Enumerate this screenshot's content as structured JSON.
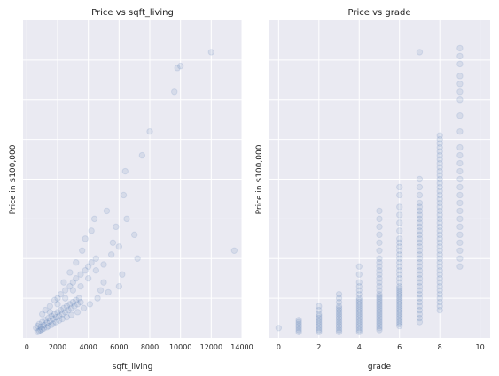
{
  "chart_data": [
    {
      "type": "scatter",
      "title": "Price vs sqft_living",
      "xlabel": "sqft_living",
      "ylabel": "Price in $100,000",
      "xlim": [
        -250,
        14000
      ],
      "xticks": [
        0,
        2000,
        4000,
        6000,
        8000,
        10000,
        12000,
        14000
      ],
      "ylim": [
        0,
        80
      ],
      "y_ticklabels_visible": false,
      "grid": true,
      "marker_alpha": 0.12,
      "points": [
        [
          600,
          2.5
        ],
        [
          700,
          3.0
        ],
        [
          800,
          3.5
        ],
        [
          900,
          2.8
        ],
        [
          1000,
          4.0
        ],
        [
          1100,
          3.2
        ],
        [
          1200,
          4.5
        ],
        [
          1300,
          3.8
        ],
        [
          1400,
          5.0
        ],
        [
          1500,
          4.2
        ],
        [
          1600,
          5.5
        ],
        [
          1700,
          4.8
        ],
        [
          1800,
          6.0
        ],
        [
          1900,
          5.2
        ],
        [
          2000,
          6.5
        ],
        [
          2100,
          5.5
        ],
        [
          2200,
          7.0
        ],
        [
          2300,
          6.0
        ],
        [
          2400,
          7.5
        ],
        [
          2500,
          6.5
        ],
        [
          2600,
          8.0
        ],
        [
          2700,
          7.0
        ],
        [
          2800,
          8.5
        ],
        [
          2900,
          7.5
        ],
        [
          3000,
          9.0
        ],
        [
          3100,
          8.0
        ],
        [
          3200,
          9.5
        ],
        [
          3300,
          8.5
        ],
        [
          3400,
          10.0
        ],
        [
          3500,
          9.0
        ],
        [
          1000,
          6.0
        ],
        [
          1200,
          7.0
        ],
        [
          1500,
          8.0
        ],
        [
          1800,
          9.5
        ],
        [
          2000,
          10.0
        ],
        [
          2200,
          11.0
        ],
        [
          2500,
          12.0
        ],
        [
          2800,
          13.0
        ],
        [
          3000,
          14.0
        ],
        [
          3200,
          15.0
        ],
        [
          3500,
          16.0
        ],
        [
          3800,
          17.0
        ],
        [
          4000,
          18.0
        ],
        [
          4200,
          19.0
        ],
        [
          4500,
          20.0
        ],
        [
          3000,
          12.0
        ],
        [
          2500,
          10.0
        ],
        [
          2000,
          8.5
        ],
        [
          1500,
          6.5
        ],
        [
          3500,
          13.0
        ],
        [
          4000,
          15.0
        ],
        [
          4500,
          17.0
        ],
        [
          5000,
          18.5
        ],
        [
          5500,
          21.0
        ],
        [
          6000,
          23.0
        ],
        [
          3800,
          25.0
        ],
        [
          4200,
          27.0
        ],
        [
          4400,
          30.0
        ],
        [
          5200,
          32.0
        ],
        [
          5800,
          28.0
        ],
        [
          6300,
          36.0
        ],
        [
          6400,
          42.0
        ],
        [
          7500,
          46.0
        ],
        [
          8000,
          52.0
        ],
        [
          9600,
          62.0
        ],
        [
          9800,
          68.0
        ],
        [
          10000,
          68.5
        ],
        [
          12000,
          72.0
        ],
        [
          13500,
          22.0
        ],
        [
          7000,
          26.0
        ],
        [
          6500,
          30.0
        ],
        [
          5000,
          14.0
        ],
        [
          4800,
          12.0
        ],
        [
          6200,
          16.0
        ],
        [
          7200,
          20.0
        ],
        [
          5600,
          24.0
        ],
        [
          3600,
          22.0
        ],
        [
          3200,
          19.0
        ],
        [
          2800,
          16.5
        ],
        [
          2400,
          14.0
        ],
        [
          700,
          1.5
        ],
        [
          800,
          1.8
        ],
        [
          900,
          2.0
        ],
        [
          1000,
          2.2
        ],
        [
          1100,
          2.4
        ],
        [
          1300,
          2.7
        ],
        [
          1400,
          3.0
        ],
        [
          1600,
          3.3
        ],
        [
          1700,
          3.6
        ],
        [
          1900,
          4.0
        ],
        [
          2100,
          4.4
        ],
        [
          2300,
          4.8
        ],
        [
          2600,
          5.2
        ],
        [
          2900,
          5.8
        ],
        [
          3300,
          6.5
        ],
        [
          3700,
          7.5
        ],
        [
          4100,
          8.5
        ],
        [
          4600,
          10.0
        ],
        [
          5300,
          11.5
        ],
        [
          6000,
          13.0
        ]
      ]
    },
    {
      "type": "scatter",
      "title": "Price vs grade",
      "xlabel": "grade",
      "ylabel": "Price in $100,000",
      "xlim": [
        -0.5,
        10.5
      ],
      "xticks": [
        0,
        2,
        4,
        6,
        8,
        10
      ],
      "ylim": [
        0,
        80
      ],
      "y_ticklabels_visible": false,
      "grid": true,
      "marker_alpha": 0.12,
      "columns": [
        {
          "grade": 0,
          "values": [
            2.5
          ]
        },
        {
          "grade": 1,
          "values": [
            1.5,
            2,
            2.5,
            3,
            3.5,
            4,
            4.5
          ]
        },
        {
          "grade": 2,
          "values": [
            1.5,
            2,
            2.5,
            3,
            3.5,
            4,
            4.5,
            5,
            5.5,
            6,
            7,
            8
          ]
        },
        {
          "grade": 3,
          "values": [
            1.5,
            2,
            2.5,
            3,
            3.5,
            4,
            4.5,
            5,
            5.5,
            6,
            6.5,
            7,
            7.5,
            8,
            9,
            10,
            11
          ]
        },
        {
          "grade": 4,
          "values": [
            1.5,
            2,
            2.5,
            3,
            3.5,
            4,
            4.5,
            5,
            5.5,
            6,
            6.5,
            7,
            7.5,
            8,
            8.5,
            9,
            9.5,
            10,
            11,
            12,
            13,
            14,
            16,
            18
          ]
        },
        {
          "grade": 5,
          "values": [
            2,
            2.5,
            3,
            3.5,
            4,
            4.5,
            5,
            5.5,
            6,
            6.5,
            7,
            7.5,
            8,
            8.5,
            9,
            9.5,
            10,
            10.5,
            11,
            12,
            13,
            14,
            15,
            16,
            17,
            18,
            19,
            20,
            22,
            24,
            26,
            28,
            30,
            32
          ]
        },
        {
          "grade": 6,
          "values": [
            3,
            3.5,
            4,
            4.5,
            5,
            5.5,
            6,
            6.5,
            7,
            7.5,
            8,
            8.5,
            9,
            9.5,
            10,
            10.5,
            11,
            11.5,
            12,
            12.5,
            13,
            14,
            15,
            16,
            17,
            18,
            19,
            20,
            21,
            22,
            23,
            24,
            25,
            27,
            29,
            31,
            33,
            36,
            38
          ]
        },
        {
          "grade": 7,
          "values": [
            4,
            5,
            6,
            7,
            8,
            9,
            10,
            11,
            12,
            13,
            14,
            15,
            16,
            17,
            18,
            19,
            20,
            21,
            22,
            23,
            24,
            25,
            26,
            27,
            28,
            29,
            30,
            31,
            32,
            33,
            34,
            36,
            38,
            40,
            72
          ]
        },
        {
          "grade": 8,
          "values": [
            7,
            8,
            9,
            10,
            11,
            12,
            13,
            14,
            15,
            16,
            17,
            18,
            19,
            20,
            21,
            22,
            23,
            24,
            25,
            26,
            27,
            28,
            29,
            30,
            31,
            32,
            33,
            34,
            35,
            36,
            37,
            38,
            39,
            40,
            41,
            42,
            43,
            44,
            45,
            46,
            47,
            48,
            49,
            50,
            51
          ]
        },
        {
          "grade": 9,
          "values": [
            18,
            20,
            22,
            24,
            26,
            28,
            30,
            32,
            34,
            36,
            38,
            40,
            42,
            44,
            46,
            48,
            52,
            56,
            60,
            62,
            64,
            66,
            69,
            71,
            73
          ]
        }
      ]
    }
  ]
}
